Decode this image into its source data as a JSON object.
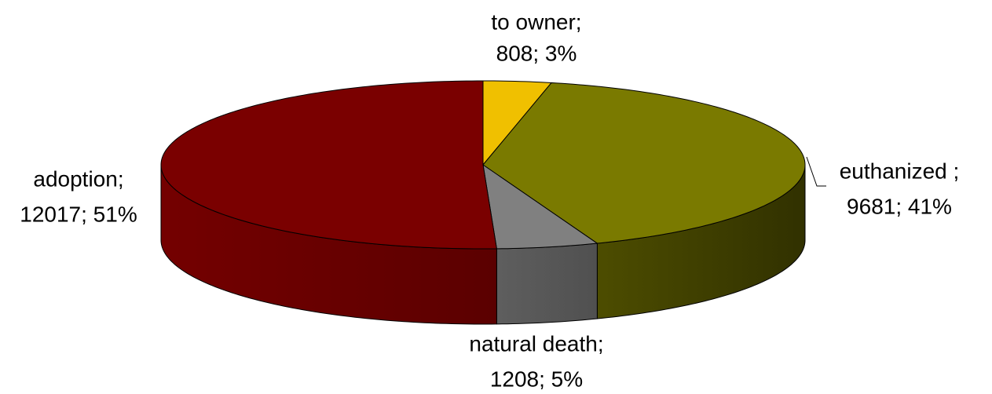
{
  "chart_data": {
    "type": "pie3d",
    "categories": [
      "to owner;",
      "euthanized ;",
      "natural death;",
      "adoption;"
    ],
    "values": [
      808,
      9681,
      1208,
      12017
    ],
    "value_labels": [
      "808; 3%",
      "9681; 41%",
      "1208; 5%",
      "12017; 51%"
    ],
    "colors": [
      "#f0c000",
      "#7a7a00",
      "#808080",
      "#7a0000"
    ]
  }
}
